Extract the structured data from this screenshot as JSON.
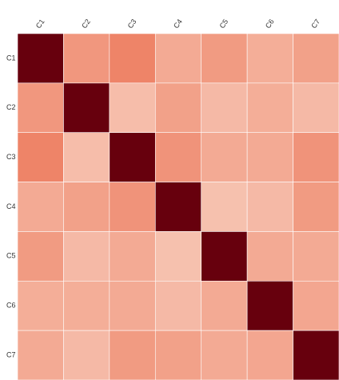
{
  "chart_data": {
    "type": "heatmap",
    "categories": [
      "C1",
      "C2",
      "C3",
      "C4",
      "C5",
      "C6",
      "C7"
    ],
    "y_categories": [
      "C1",
      "C2",
      "C3",
      "C4",
      "C5",
      "C6",
      "C7"
    ],
    "values": [
      [
        1,
        0.4,
        0.5,
        0.3,
        0.38,
        0.28,
        0.35
      ],
      [
        0.4,
        1,
        0.2,
        0.35,
        0.22,
        0.28,
        0.22
      ],
      [
        0.5,
        0.2,
        1,
        0.42,
        0.3,
        0.3,
        0.42
      ],
      [
        0.3,
        0.35,
        0.42,
        1,
        0.18,
        0.22,
        0.38
      ],
      [
        0.38,
        0.22,
        0.3,
        0.18,
        1,
        0.3,
        0.3
      ],
      [
        0.28,
        0.28,
        0.3,
        0.22,
        0.3,
        1,
        0.32
      ],
      [
        0.3,
        0.22,
        0.38,
        0.35,
        0.3,
        0.32,
        1
      ]
    ],
    "zlim": [
      0,
      1
    ],
    "colorscale": [
      "#fbe3d6",
      "#ee8468",
      "#67000d"
    ]
  }
}
